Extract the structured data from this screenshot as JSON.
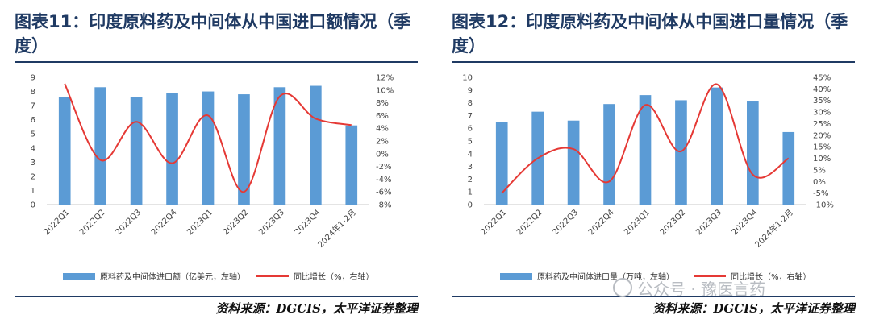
{
  "charts": [
    {
      "title": "图表11：印度原料药及中间体从中国进口额情况（季度）",
      "source": "资料来源：DGCIS，太平洋证券整理",
      "chart_data": {
        "type": "bar",
        "categories": [
          "2022Q1",
          "2022Q2",
          "2022Q3",
          "2022Q4",
          "2023Q1",
          "2023Q2",
          "2023Q3",
          "2023Q4",
          "2024年1-2月"
        ],
        "series": [
          {
            "name": "原料药及中间体进口额（亿美元，左轴）",
            "type": "bar",
            "axis": "left",
            "values": [
              7.6,
              8.3,
              7.6,
              7.9,
              8.0,
              7.8,
              8.3,
              8.4,
              5.6
            ],
            "color": "#5b9bd5"
          },
          {
            "name": "同比增长（%，右轴）",
            "type": "line",
            "axis": "right",
            "values": [
              11,
              -1,
              5,
              -1.5,
              6,
              -6,
              9,
              5.5,
              4.5
            ],
            "color": "#e53935"
          }
        ],
        "ylim_left": [
          0,
          9
        ],
        "left_ticks": [
          "0",
          "1",
          "2",
          "3",
          "4",
          "5",
          "6",
          "7",
          "8",
          "9"
        ],
        "ylim_right": [
          -8,
          12
        ],
        "right_ticks": [
          "-8%",
          "-6%",
          "-4%",
          "-2%",
          "0%",
          "2%",
          "4%",
          "6%",
          "8%",
          "10%",
          "12%"
        ],
        "legend_placement": "bottom",
        "grid": false
      }
    },
    {
      "title": "图表12：印度原料药及中间体从中国进口量情况（季度）",
      "source": "资料来源：DGCIS，太平洋证券整理",
      "chart_data": {
        "type": "bar",
        "categories": [
          "2022Q1",
          "2022Q2",
          "2022Q3",
          "2022Q4",
          "2023Q1",
          "2023Q2",
          "2023Q3",
          "2023Q4",
          "2024年1-2月"
        ],
        "series": [
          {
            "name": "原料药及中间体进口量（万吨，左轴）",
            "type": "bar",
            "axis": "left",
            "values": [
              6.5,
              7.3,
              6.6,
              7.9,
              8.6,
              8.2,
              9.2,
              8.1,
              5.7
            ],
            "color": "#5b9bd5"
          },
          {
            "name": "同比增长（%，右轴）",
            "type": "line",
            "axis": "right",
            "values": [
              -5,
              10,
              14,
              0,
              33,
              13,
              42,
              3,
              10
            ],
            "color": "#e53935"
          }
        ],
        "ylim_left": [
          0,
          10
        ],
        "left_ticks": [
          "0",
          "1",
          "2",
          "3",
          "4",
          "5",
          "6",
          "7",
          "8",
          "9",
          "10"
        ],
        "ylim_right": [
          -10,
          45
        ],
        "right_ticks": [
          "-10%",
          "-5%",
          "0%",
          "5%",
          "10%",
          "15%",
          "20%",
          "25%",
          "30%",
          "35%",
          "40%",
          "45%"
        ],
        "legend_placement": "bottom",
        "grid": false
      }
    }
  ],
  "watermark": {
    "text": "公众号 · 豫医言药",
    "icon": "wechat-icon"
  }
}
